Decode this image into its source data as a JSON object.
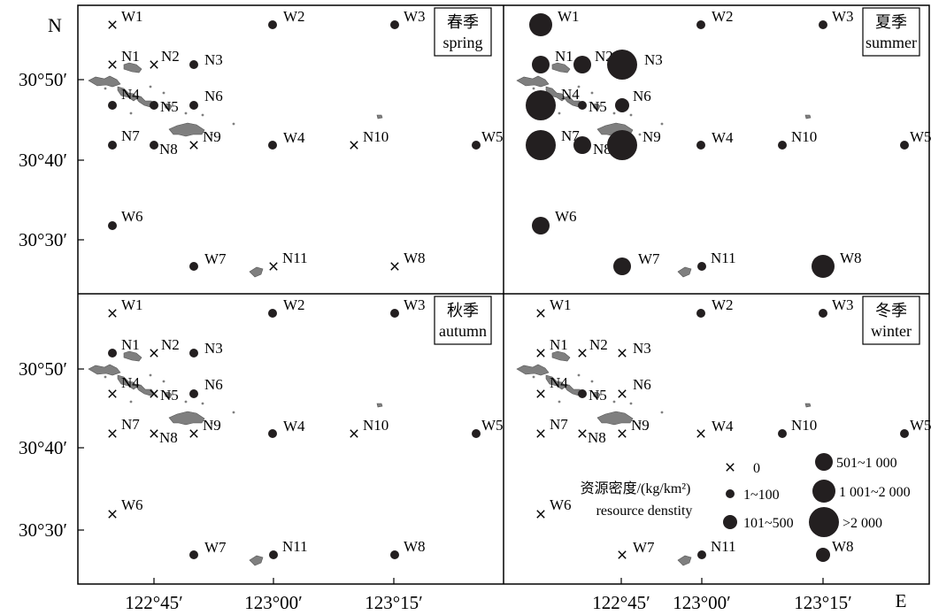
{
  "axes": {
    "north_label": "N",
    "east_label": "E",
    "lat_ticks": [
      "30°50′",
      "30°40′",
      "30°30′"
    ],
    "lon_ticks": [
      "122°45′",
      "123°00′",
      "123°15′"
    ]
  },
  "seasons": [
    {
      "zh": "春季",
      "en": "spring"
    },
    {
      "zh": "夏季",
      "en": "summer"
    },
    {
      "zh": "秋季",
      "en": "autumn"
    },
    {
      "zh": "冬季",
      "en": "winter"
    }
  ],
  "stations": [
    "W1",
    "W2",
    "W3",
    "N1",
    "N2",
    "N3",
    "N4",
    "N5",
    "N6",
    "N7",
    "N8",
    "N9",
    "W4",
    "N10",
    "W5",
    "W6",
    "W7",
    "N11",
    "W8"
  ],
  "density_classes": [
    "0",
    "1~100",
    "101~500",
    "501~1 000",
    "1 001~2 000",
    ">2 000"
  ],
  "season_classes": {
    "spring": [
      0,
      1,
      1,
      0,
      0,
      1,
      1,
      1,
      1,
      1,
      1,
      0,
      1,
      0,
      1,
      1,
      1,
      0,
      0
    ],
    "summer": [
      4,
      1,
      1,
      3,
      3,
      5,
      5,
      1,
      2,
      5,
      3,
      5,
      1,
      1,
      1,
      3,
      3,
      1,
      4
    ],
    "autumn": [
      0,
      1,
      1,
      1,
      0,
      1,
      0,
      0,
      1,
      0,
      0,
      0,
      1,
      0,
      1,
      0,
      1,
      1,
      1
    ],
    "winter": [
      0,
      1,
      1,
      0,
      0,
      0,
      0,
      1,
      0,
      0,
      0,
      0,
      0,
      1,
      1,
      0,
      0,
      1,
      2
    ]
  },
  "legend": {
    "title_zh": "资源密度/(kg/km²)",
    "title_en": "resource denstity"
  },
  "colors": {
    "marker": "#231f20",
    "land": "#7f7f7f",
    "frame": "#000000"
  }
}
